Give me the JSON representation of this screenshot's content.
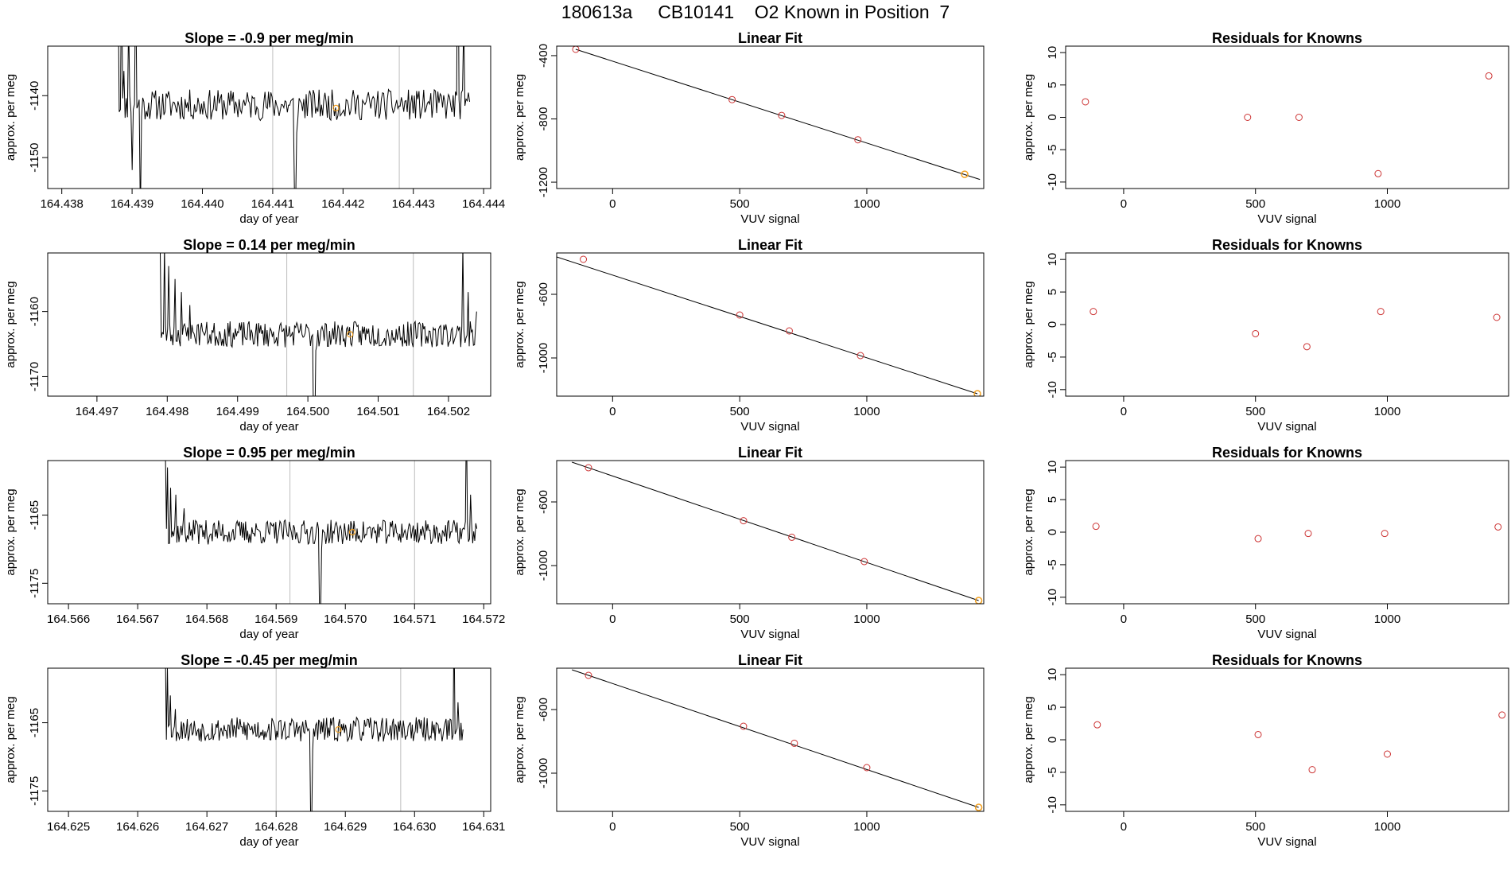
{
  "page_title": "180613a     CB10141    O2 Known in Position  7",
  "colors": {
    "trace": "#000000",
    "point": "#cc3333",
    "highlight": "#f2a020",
    "marker": "#bdbdbd",
    "fit_line": "#000000"
  },
  "chart_data": [
    {
      "type": "line",
      "panel": "time-series",
      "row": 1,
      "title": "Slope =  -0.9  per meg/min",
      "xlabel": "day of year",
      "ylabel": "approx. per meg",
      "xlim": [
        164.4378,
        164.4441
      ],
      "ylim": [
        -1155,
        -1132
      ],
      "xticks": [
        164.438,
        164.439,
        164.44,
        164.441,
        164.442,
        164.443,
        164.444
      ],
      "xtick_labels": [
        "164.438",
        "164.439",
        "164.440",
        "164.441",
        "164.442",
        "164.443",
        "164.444"
      ],
      "yticks": [
        -1150,
        -1140
      ],
      "ytick_labels": [
        "-1150",
        "-1140"
      ],
      "vlines": [
        164.441,
        164.4428
      ],
      "trace": {
        "start": 164.4388,
        "end": 164.4438,
        "level": -1141.5,
        "noise": 2.5,
        "seed": 11,
        "edges": [
          [
            0,
            -1120
          ],
          [
            3,
            -1120
          ],
          [
            5,
            -1136
          ],
          [
            9,
            -1128
          ],
          [
            12,
            -1152
          ],
          [
            15,
            -1120
          ],
          [
            19,
            -1160
          ],
          [
            22,
            -1141
          ]
        ],
        "dips": [
          [
            150,
            -1155
          ],
          [
            151,
            -1158
          ],
          [
            152,
            -1146
          ]
        ],
        "end_rise": [
          [
            0,
            -1141
          ],
          [
            5,
            -1128
          ],
          [
            10,
            -1105
          ]
        ]
      },
      "highlight": {
        "x": 164.4419,
        "y": -1142
      }
    },
    {
      "type": "scatter",
      "panel": "linear-fit",
      "row": 1,
      "title": "Linear Fit",
      "xlabel": "VUV signal",
      "ylabel": "approx. per meg",
      "xlim": [
        -220,
        1460
      ],
      "ylim": [
        -1240,
        -340
      ],
      "xticks": [
        0,
        500,
        1000
      ],
      "xtick_labels": [
        "0",
        "500",
        "1000"
      ],
      "yticks": [
        -1200,
        -800,
        -400
      ],
      "ytick_labels": [
        "-1200",
        "-800",
        "-400"
      ],
      "points": [
        {
          "x": -145,
          "y": -360
        },
        {
          "x": 470,
          "y": -678
        },
        {
          "x": 665,
          "y": -778
        },
        {
          "x": 965,
          "y": -932
        },
        {
          "x": 1385,
          "y": -1150
        }
      ],
      "highlight_index": 4,
      "fit_line": {
        "x": [
          -145,
          1445
        ],
        "y": [
          -360,
          -1183
        ]
      }
    },
    {
      "type": "scatter",
      "panel": "residuals",
      "row": 1,
      "title": "Residuals for Knowns",
      "xlabel": "VUV signal",
      "ylabel": "approx. per meg",
      "xlim": [
        -220,
        1460
      ],
      "ylim": [
        -11,
        11
      ],
      "xticks": [
        0,
        500,
        1000
      ],
      "xtick_labels": [
        "0",
        "500",
        "1000"
      ],
      "yticks": [
        -10,
        -5,
        0,
        5,
        10
      ],
      "ytick_labels": [
        "-10",
        "-5",
        "0",
        "5",
        "10"
      ],
      "points": [
        {
          "x": -145,
          "y": 2.4
        },
        {
          "x": 470,
          "y": 0
        },
        {
          "x": 665,
          "y": 0
        },
        {
          "x": 965,
          "y": -8.7
        },
        {
          "x": 1385,
          "y": 6.4
        }
      ]
    },
    {
      "type": "line",
      "panel": "time-series",
      "row": 2,
      "title": "Slope =  0.14  per meg/min",
      "xlabel": "day of year",
      "ylabel": "approx. per meg",
      "xlim": [
        164.4963,
        164.5026
      ],
      "ylim": [
        -1173,
        -1151
      ],
      "xticks": [
        164.497,
        164.498,
        164.499,
        164.5,
        164.501,
        164.502
      ],
      "xtick_labels": [
        "164.497",
        "164.498",
        "164.499",
        "164.500",
        "164.501",
        "164.502"
      ],
      "yticks": [
        -1170,
        -1160
      ],
      "ytick_labels": [
        "-1170",
        "-1160"
      ],
      "vlines": [
        164.4997,
        164.5015
      ],
      "trace": {
        "start": 164.4979,
        "end": 164.5024,
        "level": -1163.5,
        "noise": 2.0,
        "seed": 23,
        "edges": [
          [
            0,
            -1151
          ],
          [
            4,
            -1150
          ],
          [
            8,
            -1153
          ],
          [
            14,
            -1155
          ],
          [
            20,
            -1157
          ],
          [
            28,
            -1159
          ],
          [
            36,
            -1162
          ],
          [
            40,
            -1163
          ]
        ],
        "dips": [
          [
            145,
            -1180
          ],
          [
            146,
            -1180
          ],
          [
            147,
            -1166
          ]
        ],
        "end_rise": [
          [
            0,
            -1160
          ],
          [
            8,
            -1157
          ],
          [
            13,
            -1150
          ]
        ]
      },
      "highlight": {
        "x": 164.5006,
        "y": -1163.5
      }
    },
    {
      "type": "scatter",
      "panel": "linear-fit",
      "row": 2,
      "title": "Linear Fit",
      "xlabel": "VUV signal",
      "ylabel": "approx. per meg",
      "xlim": [
        -220,
        1460
      ],
      "ylim": [
        -1240,
        -340
      ],
      "xticks": [
        0,
        500,
        1000
      ],
      "xtick_labels": [
        "0",
        "500",
        "1000"
      ],
      "yticks": [
        -1000,
        -600
      ],
      "ytick_labels": [
        "-1000",
        "-600"
      ],
      "points": [
        {
          "x": -115,
          "y": -380
        },
        {
          "x": 500,
          "y": -730
        },
        {
          "x": 695,
          "y": -830
        },
        {
          "x": 975,
          "y": -985
        },
        {
          "x": 1435,
          "y": -1225
        }
      ],
      "highlight_index": 4,
      "fit_line": {
        "x": [
          -220,
          1435
        ],
        "y": [
          -365,
          -1225
        ]
      }
    },
    {
      "type": "scatter",
      "panel": "residuals",
      "row": 2,
      "title": "Residuals for Knowns",
      "xlabel": "VUV signal",
      "ylabel": "approx. per meg",
      "xlim": [
        -220,
        1460
      ],
      "ylim": [
        -11,
        11
      ],
      "xticks": [
        0,
        500,
        1000
      ],
      "xtick_labels": [
        "0",
        "500",
        "1000"
      ],
      "yticks": [
        -10,
        -5,
        0,
        5,
        10
      ],
      "ytick_labels": [
        "-10",
        "-5",
        "0",
        "5",
        "10"
      ],
      "points": [
        {
          "x": -115,
          "y": 2.0
        },
        {
          "x": 500,
          "y": -1.4
        },
        {
          "x": 695,
          "y": -3.4
        },
        {
          "x": 975,
          "y": 2.0
        },
        {
          "x": 1415,
          "y": 1.1
        }
      ]
    },
    {
      "type": "line",
      "panel": "time-series",
      "row": 3,
      "title": "Slope =  0.95  per meg/min",
      "xlabel": "day of year",
      "ylabel": "approx. per meg",
      "xlim": [
        164.5657,
        164.5721
      ],
      "ylim": [
        -1178,
        -1157
      ],
      "xticks": [
        164.566,
        164.567,
        164.568,
        164.569,
        164.57,
        164.571,
        164.572
      ],
      "xtick_labels": [
        "164.566",
        "164.567",
        "164.568",
        "164.569",
        "164.570",
        "164.571",
        "164.572"
      ],
      "yticks": [
        -1175,
        -1165
      ],
      "ytick_labels": [
        "-1175",
        "-1165"
      ],
      "vlines": [
        164.5692,
        164.571
      ],
      "trace": {
        "start": 164.5674,
        "end": 164.5719,
        "level": -1167.5,
        "noise": 1.8,
        "seed": 37,
        "edges": [
          [
            0,
            -1156
          ],
          [
            2,
            -1158
          ],
          [
            5,
            -1161
          ],
          [
            10,
            -1162
          ],
          [
            18,
            -1164
          ],
          [
            30,
            -1166
          ]
        ],
        "dips": [
          [
            148,
            -1180
          ],
          [
            149,
            -1180
          ],
          [
            150,
            -1170
          ]
        ],
        "end_rise": [
          [
            0,
            -1167
          ],
          [
            6,
            -1162
          ],
          [
            10,
            -1150
          ]
        ]
      },
      "highlight": {
        "x": 164.5701,
        "y": -1167.5
      }
    },
    {
      "type": "scatter",
      "panel": "linear-fit",
      "row": 3,
      "title": "Linear Fit",
      "xlabel": "VUV signal",
      "ylabel": "approx. per meg",
      "xlim": [
        -220,
        1460
      ],
      "ylim": [
        -1240,
        -340
      ],
      "xticks": [
        0,
        500,
        1000
      ],
      "xtick_labels": [
        "0",
        "500",
        "1000"
      ],
      "yticks": [
        -1000,
        -600
      ],
      "ytick_labels": [
        "-1000",
        "-600"
      ],
      "points": [
        {
          "x": -95,
          "y": -385
        },
        {
          "x": 515,
          "y": -718
        },
        {
          "x": 705,
          "y": -822
        },
        {
          "x": 990,
          "y": -975
        },
        {
          "x": 1440,
          "y": -1220
        }
      ],
      "highlight_index": 4,
      "fit_line": {
        "x": [
          -160,
          1440
        ],
        "y": [
          -350,
          -1220
        ]
      }
    },
    {
      "type": "scatter",
      "panel": "residuals",
      "row": 3,
      "title": "Residuals for Knowns",
      "xlabel": "VUV signal",
      "ylabel": "approx. per meg",
      "xlim": [
        -220,
        1460
      ],
      "ylim": [
        -11,
        11
      ],
      "xticks": [
        0,
        500,
        1000
      ],
      "xtick_labels": [
        "0",
        "500",
        "1000"
      ],
      "yticks": [
        -10,
        -5,
        0,
        5,
        10
      ],
      "ytick_labels": [
        "-10",
        "-5",
        "0",
        "5",
        "10"
      ],
      "points": [
        {
          "x": -105,
          "y": 0.9
        },
        {
          "x": 510,
          "y": -1.0
        },
        {
          "x": 700,
          "y": -0.2
        },
        {
          "x": 990,
          "y": -0.2
        },
        {
          "x": 1420,
          "y": 0.8
        }
      ]
    },
    {
      "type": "line",
      "panel": "time-series",
      "row": 4,
      "title": "Slope =  -0.45  per meg/min",
      "xlabel": "day of year",
      "ylabel": "approx. per meg",
      "xlim": [
        164.6247,
        164.6311
      ],
      "ylim": [
        -1178,
        -1157
      ],
      "xticks": [
        164.625,
        164.626,
        164.627,
        164.628,
        164.629,
        164.63,
        164.631
      ],
      "xtick_labels": [
        "164.625",
        "164.626",
        "164.627",
        "164.628",
        "164.629",
        "164.630",
        "164.631"
      ],
      "yticks": [
        -1175,
        -1165
      ],
      "ytick_labels": [
        "-1175",
        "-1165"
      ],
      "vlines": [
        164.628,
        164.6298
      ],
      "trace": {
        "start": 164.6264,
        "end": 164.6307,
        "level": -1166,
        "noise": 1.8,
        "seed": 53,
        "edges": [
          [
            0,
            -1155
          ],
          [
            2,
            -1157
          ],
          [
            5,
            -1161
          ],
          [
            10,
            -1163
          ],
          [
            18,
            -1165
          ]
        ],
        "dips": [
          [
            146,
            -1180
          ],
          [
            147,
            -1180
          ],
          [
            148,
            -1169
          ]
        ],
        "end_rise": [
          [
            0,
            -1166
          ],
          [
            5,
            -1162
          ],
          [
            9,
            -1150
          ]
        ]
      },
      "highlight": {
        "x": 164.6289,
        "y": -1166
      }
    },
    {
      "type": "scatter",
      "panel": "linear-fit",
      "row": 4,
      "title": "Linear Fit",
      "xlabel": "VUV signal",
      "ylabel": "approx. per meg",
      "xlim": [
        -220,
        1460
      ],
      "ylim": [
        -1240,
        -340
      ],
      "xticks": [
        0,
        500,
        1000
      ],
      "xtick_labels": [
        "0",
        "500",
        "1000"
      ],
      "yticks": [
        -1000,
        -600
      ],
      "ytick_labels": [
        "-1000",
        "-600"
      ],
      "points": [
        {
          "x": -95,
          "y": -385
        },
        {
          "x": 515,
          "y": -705
        },
        {
          "x": 715,
          "y": -812
        },
        {
          "x": 1000,
          "y": -965
        },
        {
          "x": 1440,
          "y": -1215
        }
      ],
      "highlight_index": 4,
      "fit_line": {
        "x": [
          -160,
          1440
        ],
        "y": [
          -350,
          -1215
        ]
      }
    },
    {
      "type": "scatter",
      "panel": "residuals",
      "row": 4,
      "title": "Residuals for Knowns",
      "xlabel": "VUV signal",
      "ylabel": "approx. per meg",
      "xlim": [
        -220,
        1460
      ],
      "ylim": [
        -11,
        11
      ],
      "xticks": [
        0,
        500,
        1000
      ],
      "xtick_labels": [
        "0",
        "500",
        "1000"
      ],
      "yticks": [
        -10,
        -5,
        0,
        5,
        10
      ],
      "ytick_labels": [
        "-10",
        "-5",
        "0",
        "5",
        "10"
      ],
      "points": [
        {
          "x": -100,
          "y": 2.3
        },
        {
          "x": 510,
          "y": 0.8
        },
        {
          "x": 715,
          "y": -4.6
        },
        {
          "x": 1000,
          "y": -2.2
        },
        {
          "x": 1435,
          "y": 3.8
        }
      ]
    }
  ]
}
